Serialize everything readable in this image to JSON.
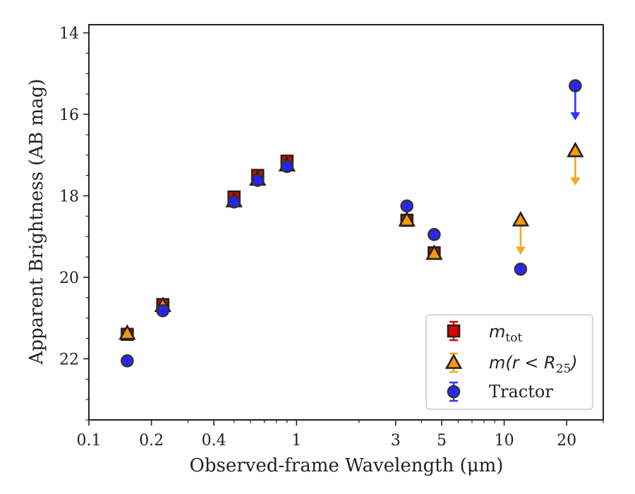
{
  "chart_data": {
    "type": "scatter",
    "xlabel": "Observed-frame Wavelength (μm)",
    "ylabel": "Apparent Brightness (AB mag)",
    "x_scale": "log",
    "xlim": [
      0.1,
      30
    ],
    "ylim": [
      23.5,
      13.8
    ],
    "y_inverted": true,
    "x_ticks": [
      {
        "value": 0.1,
        "label": "0.1"
      },
      {
        "value": 0.2,
        "label": "0.2"
      },
      {
        "value": 0.4,
        "label": "0.4"
      },
      {
        "value": 1,
        "label": "1"
      },
      {
        "value": 3,
        "label": "3"
      },
      {
        "value": 5,
        "label": "5"
      },
      {
        "value": 10,
        "label": "10"
      },
      {
        "value": 20,
        "label": "20"
      }
    ],
    "y_ticks": [
      {
        "value": 14,
        "label": "14"
      },
      {
        "value": 16,
        "label": "16"
      },
      {
        "value": 18,
        "label": "18"
      },
      {
        "value": 20,
        "label": "20"
      },
      {
        "value": 22,
        "label": "22"
      }
    ],
    "grid": false,
    "legend_position": "bottom-right",
    "series": [
      {
        "name": "m_tot",
        "label_main": "m",
        "label_sub": "tot",
        "marker": "square",
        "color": "#e00000",
        "errorbar_color": "#dd0000",
        "points": [
          {
            "x": 0.153,
            "y": 21.4
          },
          {
            "x": 0.227,
            "y": 20.67
          },
          {
            "x": 0.5,
            "y": 18.03
          },
          {
            "x": 0.65,
            "y": 17.5
          },
          {
            "x": 0.9,
            "y": 17.15
          },
          {
            "x": 3.4,
            "y": 18.6
          },
          {
            "x": 4.6,
            "y": 19.4
          }
        ]
      },
      {
        "name": "m(r < R25)",
        "label_main": "m(r < R",
        "label_sub": "25",
        "label_tail": ")",
        "marker": "triangle",
        "color": "#ff9900",
        "errorbar_color": "#f5a623",
        "points": [
          {
            "x": 0.153,
            "y": 21.38
          },
          {
            "x": 0.227,
            "y": 20.7
          },
          {
            "x": 0.5,
            "y": 18.13
          },
          {
            "x": 0.65,
            "y": 17.6
          },
          {
            "x": 0.9,
            "y": 17.25
          },
          {
            "x": 3.4,
            "y": 18.6
          },
          {
            "x": 4.6,
            "y": 19.42
          },
          {
            "x": 12.0,
            "y": 18.6,
            "upper_limit": true
          },
          {
            "x": 22.0,
            "y": 16.9,
            "upper_limit": true
          }
        ]
      },
      {
        "name": "Tractor",
        "marker": "circle",
        "color": "#1f1fff",
        "errorbar_color": "#3333ff",
        "points": [
          {
            "x": 0.153,
            "y": 22.05
          },
          {
            "x": 0.227,
            "y": 20.82
          },
          {
            "x": 0.5,
            "y": 18.15
          },
          {
            "x": 0.65,
            "y": 17.62
          },
          {
            "x": 0.9,
            "y": 17.28
          },
          {
            "x": 3.4,
            "y": 18.25
          },
          {
            "x": 4.6,
            "y": 18.95
          },
          {
            "x": 12.0,
            "y": 19.8
          },
          {
            "x": 22.0,
            "y": 15.3,
            "upper_limit": true
          }
        ]
      }
    ]
  }
}
